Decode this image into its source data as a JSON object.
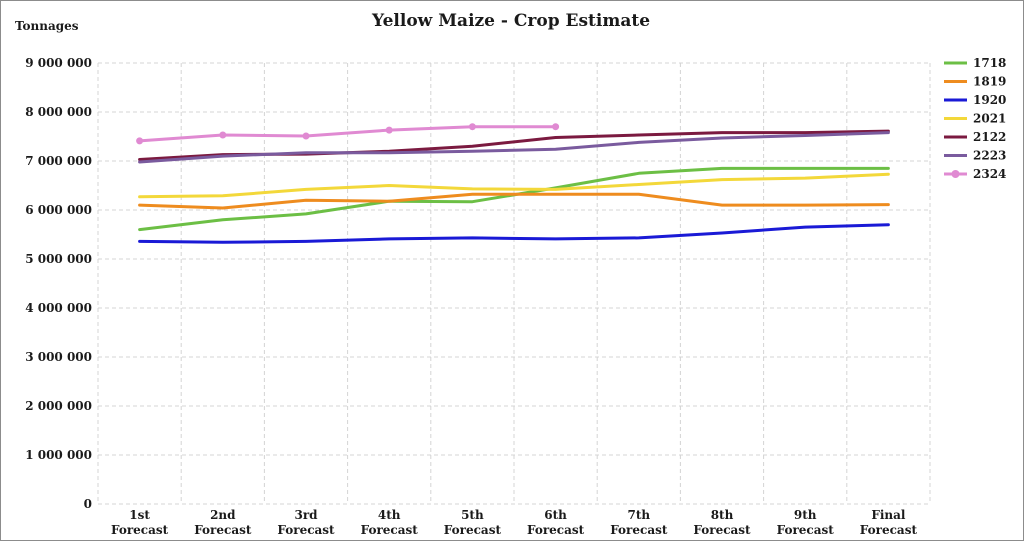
{
  "chart_data": {
    "type": "line",
    "title": "Yellow Maize - Crop Estimate",
    "ylabel": "Tonnages",
    "xlabel": "",
    "ylim": [
      0,
      9000000
    ],
    "yticks": [
      0,
      1000000,
      2000000,
      3000000,
      4000000,
      5000000,
      6000000,
      7000000,
      8000000,
      9000000
    ],
    "ytick_labels": [
      "0",
      "1 000 000",
      "2 000 000",
      "3 000 000",
      "4 000 000",
      "5 000 000",
      "6 000 000",
      "7 000 000",
      "8 000 000",
      "9 000 000"
    ],
    "categories": [
      [
        "1st",
        "Forecast"
      ],
      [
        "2nd",
        "Forecast"
      ],
      [
        "3rd",
        "Forecast"
      ],
      [
        "4th",
        "Forecast"
      ],
      [
        "5th",
        "Forecast"
      ],
      [
        "6th",
        "Forecast"
      ],
      [
        "7th",
        "Forecast"
      ],
      [
        "8th",
        "Forecast"
      ],
      [
        "9th",
        "Forecast"
      ],
      [
        "Final",
        "Forecast"
      ]
    ],
    "grid": true,
    "legend_position": "right",
    "series": [
      {
        "name": "1718",
        "color": "#6cbf45",
        "marker": false,
        "values": [
          5600000,
          5800000,
          5920000,
          6180000,
          6170000,
          6450000,
          6750000,
          6850000,
          6850000,
          6850000
        ]
      },
      {
        "name": "1819",
        "color": "#ee8c1f",
        "marker": false,
        "values": [
          6100000,
          6040000,
          6200000,
          6180000,
          6320000,
          6320000,
          6320000,
          6100000,
          6100000,
          6110000
        ]
      },
      {
        "name": "1920",
        "color": "#1a1ad6",
        "marker": false,
        "values": [
          5360000,
          5340000,
          5360000,
          5410000,
          5430000,
          5410000,
          5430000,
          5530000,
          5650000,
          5700000
        ]
      },
      {
        "name": "2021",
        "color": "#f3d83a",
        "marker": false,
        "values": [
          6270000,
          6290000,
          6420000,
          6500000,
          6430000,
          6420000,
          6520000,
          6620000,
          6650000,
          6730000
        ]
      },
      {
        "name": "2122",
        "color": "#7b1a40",
        "marker": false,
        "values": [
          7030000,
          7130000,
          7140000,
          7200000,
          7300000,
          7480000,
          7530000,
          7580000,
          7580000,
          7610000
        ]
      },
      {
        "name": "2223",
        "color": "#7a5b9e",
        "marker": false,
        "values": [
          6980000,
          7100000,
          7170000,
          7170000,
          7200000,
          7240000,
          7380000,
          7470000,
          7520000,
          7580000
        ]
      },
      {
        "name": "2324",
        "color": "#e08ad2",
        "marker": true,
        "values": [
          7410000,
          7530000,
          7510000,
          7630000,
          7700000,
          7700000,
          null,
          null,
          null,
          null
        ]
      }
    ]
  }
}
